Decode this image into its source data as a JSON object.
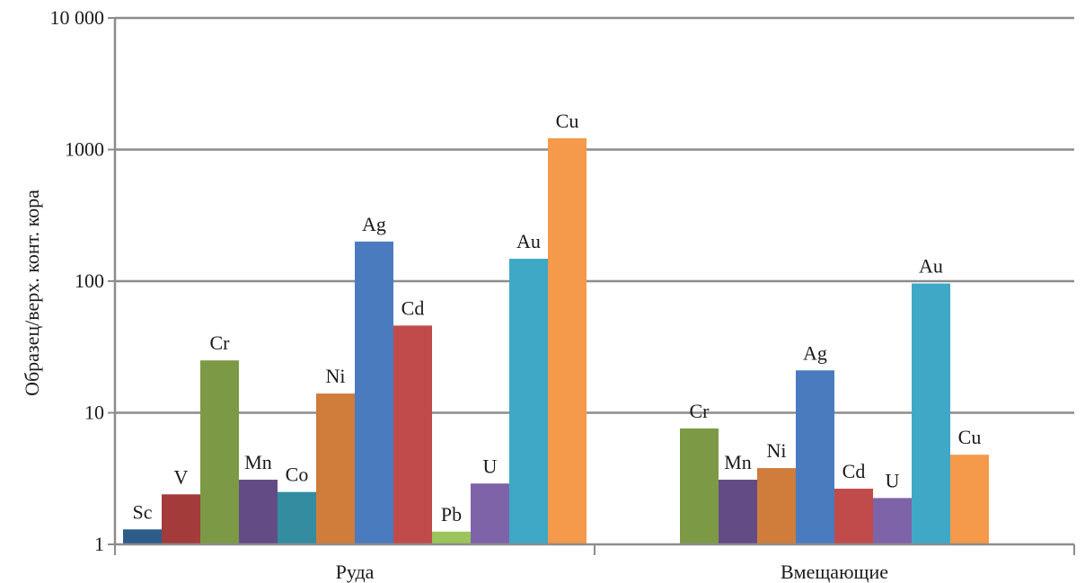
{
  "chart_data": {
    "type": "bar",
    "title": "",
    "xlabel": "",
    "ylabel": "Образец/верх. конт. кора",
    "yscale": "log",
    "ylim": [
      1,
      10000
    ],
    "grid": true,
    "y_ticks": [
      {
        "value": 1,
        "label": "1"
      },
      {
        "value": 10,
        "label": "10"
      },
      {
        "value": 100,
        "label": "100"
      },
      {
        "value": 1000,
        "label": "1000"
      },
      {
        "value": 10000,
        "label": "10 000"
      }
    ],
    "groups": [
      {
        "name": "Руда",
        "bars": [
          {
            "element": "Sc",
            "value": 1.3,
            "color": "#2e5c8a"
          },
          {
            "element": "V",
            "value": 2.4,
            "color": "#a33b3b"
          },
          {
            "element": "Cr",
            "value": 25,
            "color": "#7c9a45"
          },
          {
            "element": "Mn",
            "value": 3.1,
            "color": "#634b86"
          },
          {
            "element": "Co",
            "value": 2.5,
            "color": "#338ca0"
          },
          {
            "element": "Ni",
            "value": 14,
            "color": "#d07c3a"
          },
          {
            "element": "Ag",
            "value": 200,
            "color": "#4a7bbf"
          },
          {
            "element": "Cd",
            "value": 46,
            "color": "#c14b4b"
          },
          {
            "element": "Pb",
            "value": 1.25,
            "color": "#9bc45a"
          },
          {
            "element": "U",
            "value": 2.9,
            "color": "#7e63a8"
          },
          {
            "element": "Au",
            "value": 148,
            "color": "#3ea8c6"
          },
          {
            "element": "Cu",
            "value": 1220,
            "color": "#f5994a"
          }
        ]
      },
      {
        "name": "Вмещающие",
        "bars": [
          {
            "element": "Cr",
            "value": 7.6,
            "color": "#7c9a45"
          },
          {
            "element": "Mn",
            "value": 3.1,
            "color": "#634b86"
          },
          {
            "element": "Ni",
            "value": 3.8,
            "color": "#d07c3a"
          },
          {
            "element": "Ag",
            "value": 21,
            "color": "#4a7bbf"
          },
          {
            "element": "Cd",
            "value": 2.65,
            "color": "#c14b4b"
          },
          {
            "element": "U",
            "value": 2.25,
            "color": "#7e63a8"
          },
          {
            "element": "Au",
            "value": 96,
            "color": "#3ea8c6"
          },
          {
            "element": "Cu",
            "value": 4.8,
            "color": "#f5994a"
          }
        ]
      }
    ]
  }
}
